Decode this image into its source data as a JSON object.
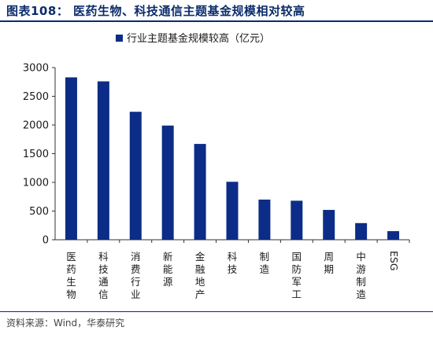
{
  "header": {
    "title": "图表108：   医药生物、科技通信主题基金规模相对较高"
  },
  "footer": {
    "source": "资料来源：Wind，华泰研究"
  },
  "colors": {
    "bar": "#0c2d87",
    "accent": "#0c2d6b"
  },
  "chart_data": {
    "type": "bar",
    "title": "",
    "xlabel": "",
    "ylabel": "",
    "ylim": [
      0,
      3000
    ],
    "yticks": [
      0,
      500,
      1000,
      1500,
      2000,
      2500,
      3000
    ],
    "grid": false,
    "legend": "top-center",
    "categories": [
      "医药生物",
      "科技通信",
      "消费行业",
      "新能源",
      "金融地产",
      "科技",
      "制造",
      "国防军工",
      "周期",
      "中游制造",
      "ESG"
    ],
    "series": [
      {
        "name": "行业主题基金规模较高（亿元）",
        "values": [
          2830,
          2760,
          2230,
          1990,
          1670,
          1010,
          700,
          680,
          520,
          290,
          150
        ]
      }
    ]
  }
}
